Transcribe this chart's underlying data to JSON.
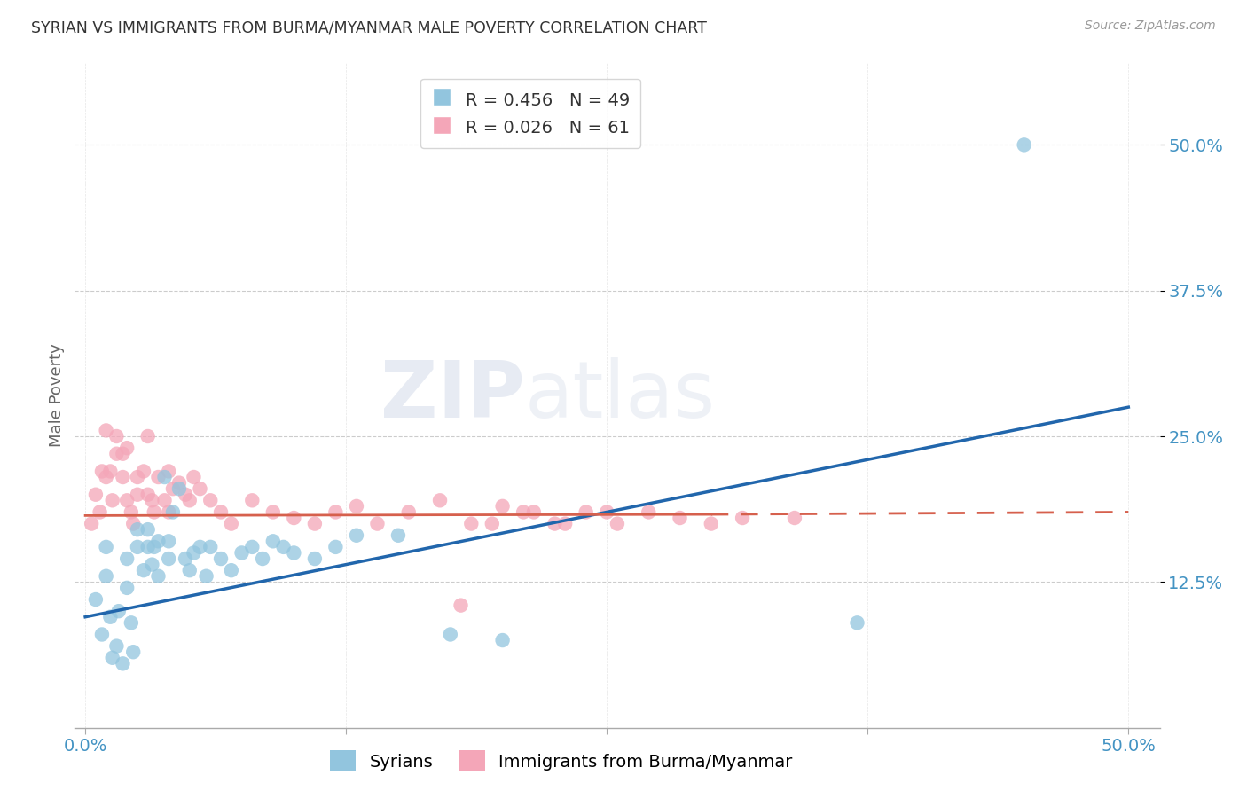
{
  "title": "SYRIAN VS IMMIGRANTS FROM BURMA/MYANMAR MALE POVERTY CORRELATION CHART",
  "source": "Source: ZipAtlas.com",
  "ylabel": "Male Poverty",
  "ytick_values": [
    0.125,
    0.25,
    0.375,
    0.5
  ],
  "xtick_values": [
    0.0,
    0.125,
    0.25,
    0.375,
    0.5
  ],
  "xlim": [
    -0.005,
    0.515
  ],
  "ylim": [
    0.0,
    0.57
  ],
  "legend_label1": "Syrians",
  "legend_label2": "Immigrants from Burma/Myanmar",
  "R1": 0.456,
  "N1": 49,
  "R2": 0.026,
  "N2": 61,
  "color_blue": "#92c5de",
  "color_pink": "#f4a6b8",
  "line_blue": "#2166ac",
  "line_pink": "#d6604d",
  "background_color": "#ffffff",
  "grid_color": "#cccccc",
  "watermark_zip": "ZIP",
  "watermark_atlas": "atlas",
  "title_color": "#333333",
  "axis_label_color": "#4393c3",
  "syrians_x": [
    0.005,
    0.008,
    0.01,
    0.01,
    0.012,
    0.013,
    0.015,
    0.016,
    0.018,
    0.02,
    0.02,
    0.022,
    0.023,
    0.025,
    0.025,
    0.028,
    0.03,
    0.03,
    0.032,
    0.033,
    0.035,
    0.035,
    0.038,
    0.04,
    0.04,
    0.042,
    0.045,
    0.048,
    0.05,
    0.052,
    0.055,
    0.058,
    0.06,
    0.065,
    0.07,
    0.075,
    0.08,
    0.085,
    0.09,
    0.095,
    0.1,
    0.11,
    0.12,
    0.13,
    0.15,
    0.175,
    0.2,
    0.37,
    0.45
  ],
  "syrians_y": [
    0.11,
    0.08,
    0.13,
    0.155,
    0.095,
    0.06,
    0.07,
    0.1,
    0.055,
    0.12,
    0.145,
    0.09,
    0.065,
    0.155,
    0.17,
    0.135,
    0.155,
    0.17,
    0.14,
    0.155,
    0.13,
    0.16,
    0.215,
    0.145,
    0.16,
    0.185,
    0.205,
    0.145,
    0.135,
    0.15,
    0.155,
    0.13,
    0.155,
    0.145,
    0.135,
    0.15,
    0.155,
    0.145,
    0.16,
    0.155,
    0.15,
    0.145,
    0.155,
    0.165,
    0.165,
    0.08,
    0.075,
    0.09,
    0.5
  ],
  "burma_x": [
    0.003,
    0.005,
    0.007,
    0.008,
    0.01,
    0.01,
    0.012,
    0.013,
    0.015,
    0.015,
    0.018,
    0.018,
    0.02,
    0.02,
    0.022,
    0.023,
    0.025,
    0.025,
    0.028,
    0.03,
    0.03,
    0.032,
    0.033,
    0.035,
    0.038,
    0.04,
    0.04,
    0.042,
    0.045,
    0.048,
    0.05,
    0.052,
    0.055,
    0.06,
    0.065,
    0.07,
    0.08,
    0.09,
    0.1,
    0.11,
    0.12,
    0.13,
    0.14,
    0.155,
    0.17,
    0.185,
    0.2,
    0.215,
    0.23,
    0.25,
    0.18,
    0.195,
    0.21,
    0.225,
    0.24,
    0.255,
    0.27,
    0.285,
    0.3,
    0.315,
    0.34
  ],
  "burma_y": [
    0.175,
    0.2,
    0.185,
    0.22,
    0.255,
    0.215,
    0.22,
    0.195,
    0.235,
    0.25,
    0.215,
    0.235,
    0.24,
    0.195,
    0.185,
    0.175,
    0.2,
    0.215,
    0.22,
    0.2,
    0.25,
    0.195,
    0.185,
    0.215,
    0.195,
    0.185,
    0.22,
    0.205,
    0.21,
    0.2,
    0.195,
    0.215,
    0.205,
    0.195,
    0.185,
    0.175,
    0.195,
    0.185,
    0.18,
    0.175,
    0.185,
    0.19,
    0.175,
    0.185,
    0.195,
    0.175,
    0.19,
    0.185,
    0.175,
    0.185,
    0.105,
    0.175,
    0.185,
    0.175,
    0.185,
    0.175,
    0.185,
    0.18,
    0.175,
    0.18,
    0.18
  ],
  "blue_line_x": [
    0.0,
    0.5
  ],
  "blue_line_y": [
    0.095,
    0.275
  ],
  "pink_line_x0": 0.0,
  "pink_line_x_split": 0.3,
  "pink_line_x1": 0.5,
  "pink_line_y0": 0.182,
  "pink_line_y_split": 0.183,
  "pink_line_y1": 0.185
}
